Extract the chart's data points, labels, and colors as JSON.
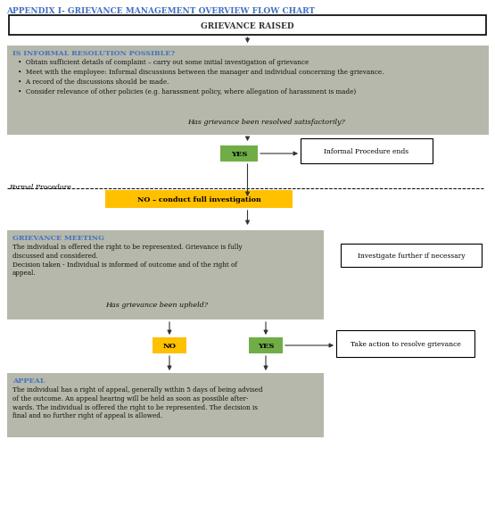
{
  "title": "APPENDIX I- GRIEVANCE MANAGEMENT OVERVIEW FLOW CHART",
  "title_color": "#4472C4",
  "bg_color": "#f5f5f0",
  "box_bg_gray": "#b5b8aa",
  "box_yes_color": "#70ad47",
  "box_no_color": "#ffc000",
  "text_blue": "#4472C4",
  "grievance_raised_text": "GRIEVANCE RAISED",
  "informal_header": "IS INFORMAL RESOLUTION POSSIBLE?",
  "informal_bullets": [
    "Obtain sufficient details of complaint – carry out some initial investigation of grievance",
    "Meet with the employee: Informal discussions between the manager and individual concerning the grievance.",
    "A record of the discussions should be made.",
    "Consider relevance of other policies (e.g. harassment policy, where allegation of harassment is made)"
  ],
  "informal_question": "Has grievance been resolved satisfactorily?",
  "formal_procedure_label": "Formal Procedure",
  "no_box_text": "NO – conduct full investigation",
  "grievance_meeting_header": "GRIEVANCE MEETING",
  "grievance_meeting_body": "The individual is offered the right to be represented. Grievance is fully\ndiscussed and considered.\nDecision taken - Individual is informed of outcome and of the right of\nappeal.",
  "grievance_meeting_question": "Has grievance been upheld?",
  "investigate_further_text": "Investigate further if necessary",
  "take_action_text": "Take action to resolve grievance",
  "informal_ends_text": "Informal Procedure ends",
  "appeal_header": "APPEAL",
  "appeal_body": "The individual has a right of appeal, generally within 5 days of being advised\nof the outcome. An appeal hearing will be held as soon as possible after-\nwards. The individual is offered the right to be represented. The decision is\nfinal and no further right of appeal is allowed."
}
